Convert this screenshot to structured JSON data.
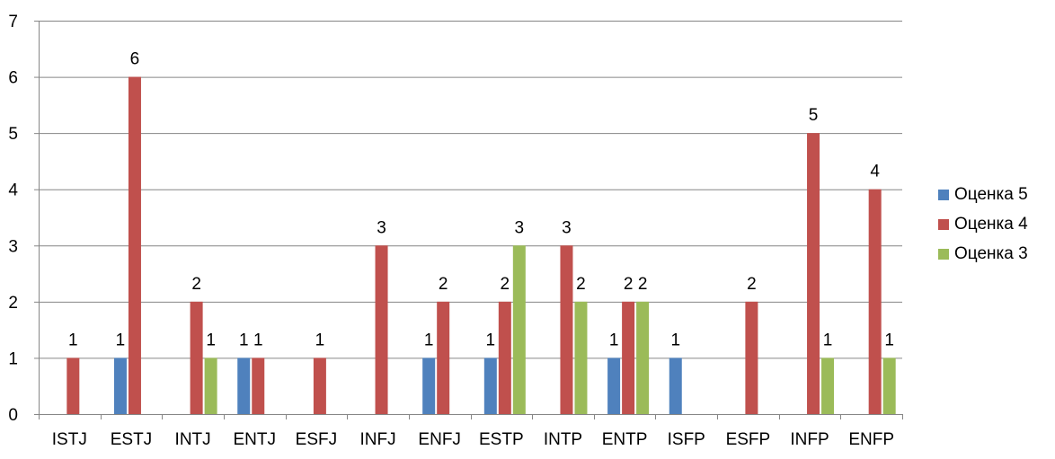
{
  "chart_data": {
    "type": "bar",
    "title": "",
    "xlabel": "",
    "ylabel": "",
    "ylim": [
      0,
      7
    ],
    "yticks": [
      0,
      1,
      2,
      3,
      4,
      5,
      6,
      7
    ],
    "grid": true,
    "legend_position": "right",
    "data_labels": true,
    "categories": [
      "ISTJ",
      "ESTJ",
      "INTJ",
      "ENTJ",
      "ESFJ",
      "INFJ",
      "ENFJ",
      "ESTP",
      "INTP",
      "ENTP",
      "ISFP",
      "ESFP",
      "INFP",
      "ENFP"
    ],
    "series": [
      {
        "name": "Оценка 5",
        "color": "#4F81BD",
        "values": [
          null,
          1,
          null,
          1,
          null,
          null,
          1,
          1,
          null,
          1,
          1,
          null,
          null,
          null
        ]
      },
      {
        "name": "Оценка 4",
        "color": "#C0504D",
        "values": [
          1,
          6,
          2,
          1,
          1,
          3,
          2,
          2,
          3,
          2,
          null,
          2,
          5,
          4
        ]
      },
      {
        "name": "Оценка 3",
        "color": "#9BBB59",
        "values": [
          null,
          null,
          1,
          null,
          null,
          null,
          null,
          3,
          2,
          2,
          null,
          null,
          1,
          1
        ]
      }
    ]
  }
}
